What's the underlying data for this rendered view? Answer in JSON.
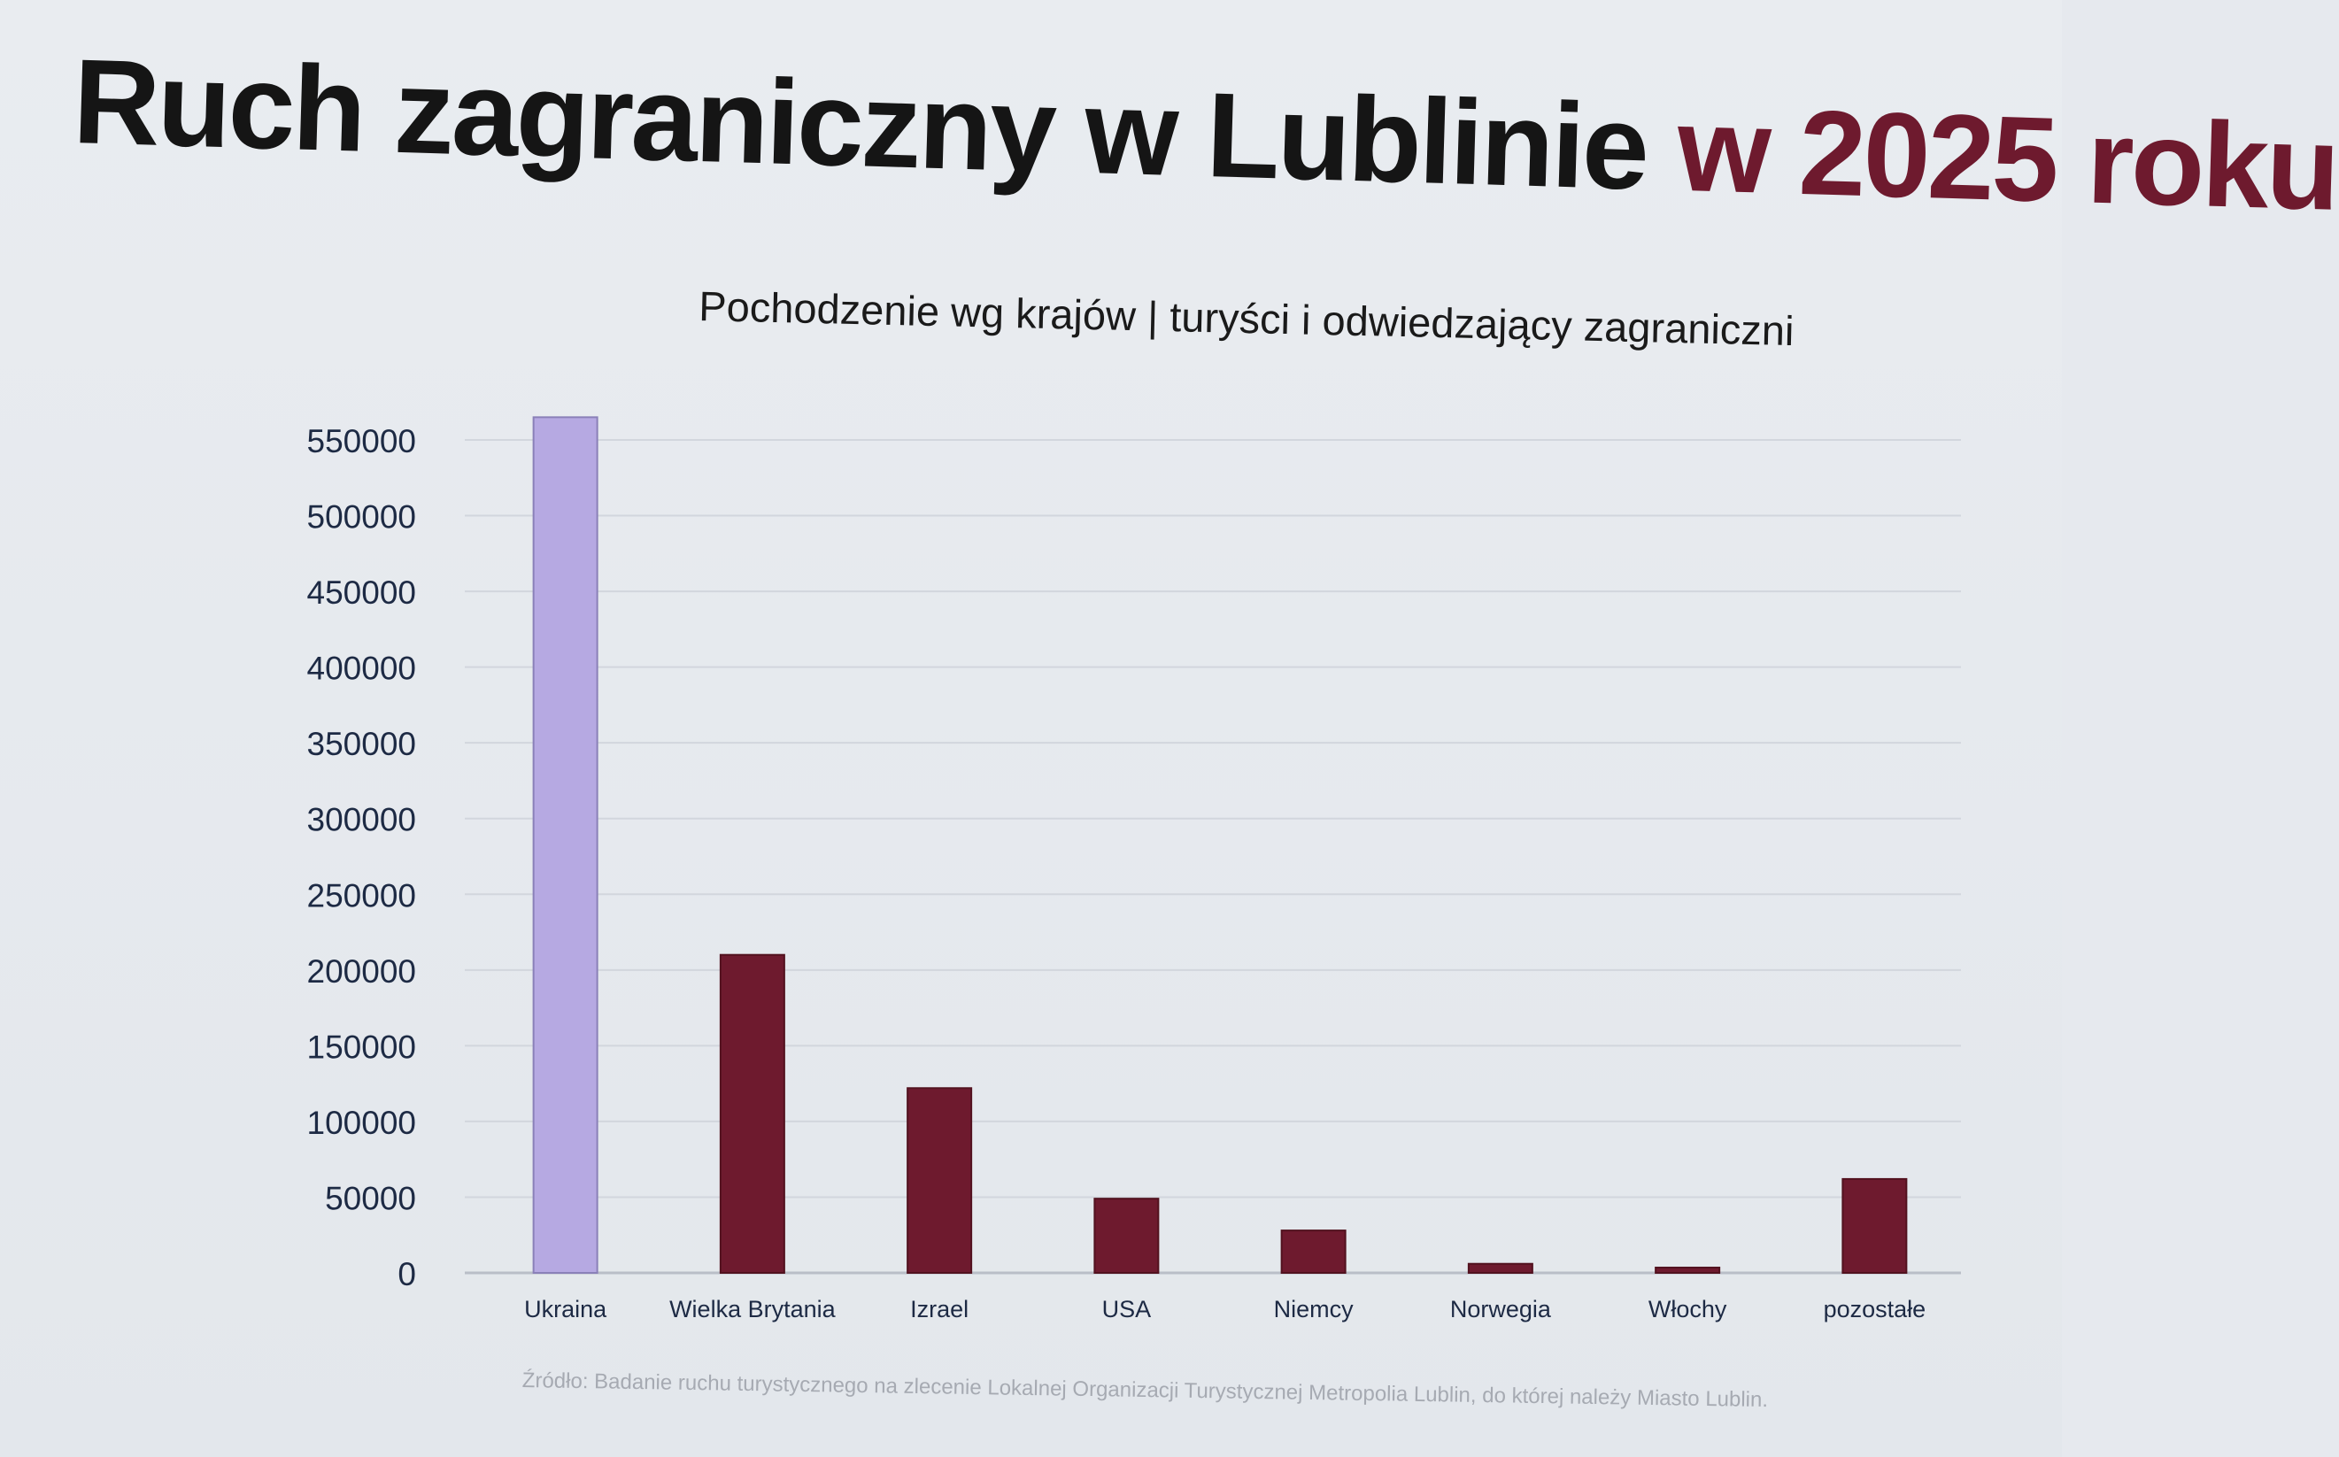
{
  "title": {
    "main": "Ruch zagraniczny w Lublinie",
    "accent": "w 2025 roku"
  },
  "source": "Źródło: Badanie ruchu turystycznego na zlecenie Lokalnej Organizacji Turystycznej Metropolia Lublin, do której należy Miasto Lublin.",
  "colors": {
    "highlight": "#b6a9e2",
    "bar": "#6e1a2e",
    "accent": "#6e1a2e"
  },
  "chart_data": {
    "type": "bar",
    "title": "Pochodzenie wg krajów | turyści i odwiedzający zagraniczni",
    "xlabel": "",
    "ylabel": "",
    "categories": [
      "Ukraina",
      "Wielka Brytania",
      "Izrael",
      "USA",
      "Niemcy",
      "Norwegia",
      "Włochy",
      "pozostałe"
    ],
    "values": [
      565000,
      210000,
      122000,
      49000,
      28000,
      6000,
      3500,
      62000
    ],
    "ylim": [
      0,
      550000
    ],
    "yticks": [
      "0",
      "50000",
      "100000",
      "150000",
      "200000",
      "250000",
      "300000",
      "350000",
      "400000",
      "450000",
      "500000",
      "550000"
    ],
    "highlight_category": "Ukraina",
    "grid": true,
    "legend": "none"
  }
}
